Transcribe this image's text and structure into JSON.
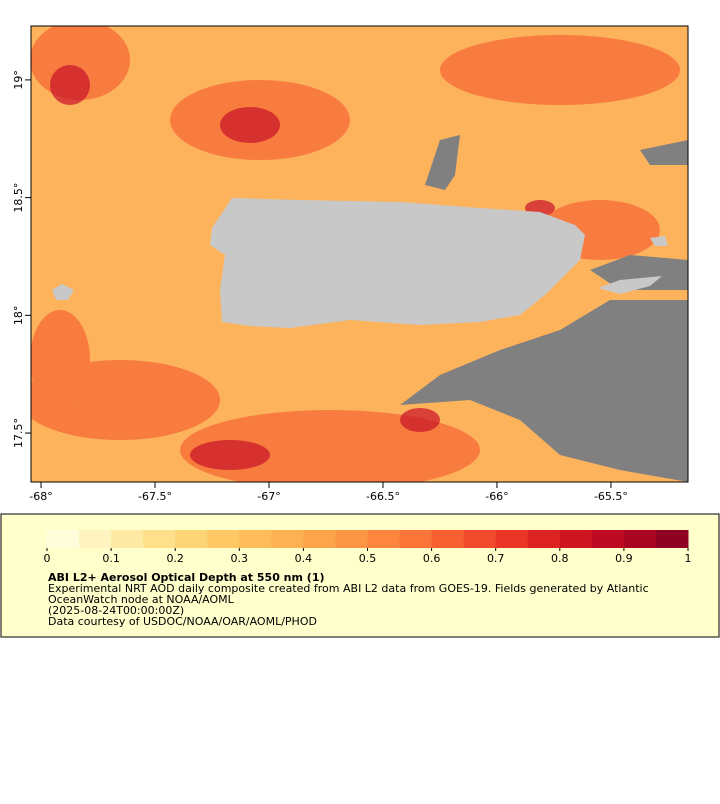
{
  "map": {
    "xlim": [
      -68.044,
      -65.162
    ],
    "ylim": [
      17.292,
      19.229
    ],
    "xticks": [
      {
        "value": -68,
        "label": "-68°"
      },
      {
        "value": -67.5,
        "label": "-67.5°"
      },
      {
        "value": -67,
        "label": "-67°"
      },
      {
        "value": -66.5,
        "label": "-66.5°"
      },
      {
        "value": -66,
        "label": "-66°"
      },
      {
        "value": -65.5,
        "label": "-65.5°"
      }
    ],
    "yticks": [
      {
        "value": 19,
        "label": "19°"
      },
      {
        "value": 18.5,
        "label": "18.5°"
      },
      {
        "value": 18,
        "label": "18°"
      },
      {
        "value": 17.5,
        "label": "17.5°"
      }
    ]
  },
  "colorbar": {
    "lim": [
      0,
      1
    ],
    "ticks": [
      0,
      0.1,
      0.2,
      0.3,
      0.4,
      0.5,
      0.6,
      0.7,
      0.8,
      0.9,
      1
    ],
    "colors": [
      "#fffcdc",
      "#fff3c0",
      "#feeaa4",
      "#fee08a",
      "#fed576",
      "#fec965",
      "#febd5a",
      "#feb152",
      "#fda44b",
      "#fd9644",
      "#fc863e",
      "#fb7438",
      "#f86032",
      "#f24a2c",
      "#e93627",
      "#de2423",
      "#cf1421",
      "#be0a22",
      "#a90523",
      "#900224"
    ]
  },
  "legend": {
    "title": "ABI L2+ Aerosol Optical Depth at 550 nm (1)",
    "lines": [
      "Experimental NRT AOD daily composite created from ABI L2 data from GOES-19. Fields generated by Atlantic",
      "OceanWatch node at NOAA/AOML",
      "(2025-08-24T00:00:00Z)",
      "Data courtesy of USDOC/NOAA/OAR/AOML/PHOD"
    ]
  }
}
